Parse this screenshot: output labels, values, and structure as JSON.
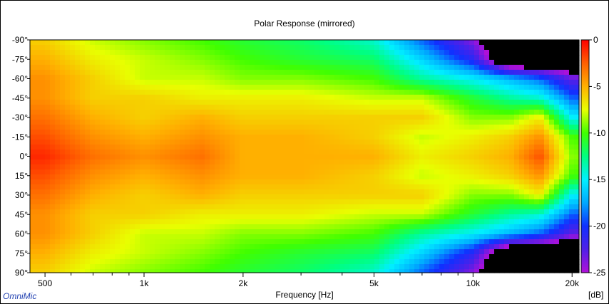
{
  "chart_data": {
    "type": "heatmap",
    "title": "Polar Response (mirrored)",
    "xlabel": "Frequency [Hz]",
    "ylabel": "",
    "colorbar_label": "[dB]",
    "x_scale": "log",
    "xlim": [
      450,
      21000
    ],
    "ylim": [
      -90,
      90
    ],
    "x_tick_labels": [
      {
        "value": 500,
        "label": "500"
      },
      {
        "value": 1000,
        "label": "1k"
      },
      {
        "value": 2000,
        "label": "2k"
      },
      {
        "value": 5000,
        "label": "5k"
      },
      {
        "value": 10000,
        "label": "10k"
      },
      {
        "value": 20000,
        "label": "20k"
      }
    ],
    "x_minor_ticks": [
      600,
      700,
      800,
      900,
      3000,
      4000,
      6000,
      7000,
      8000,
      9000
    ],
    "y_tick_labels": [
      {
        "value": -90,
        "label": "-90°"
      },
      {
        "value": -75,
        "label": "-75°"
      },
      {
        "value": -60,
        "label": "-60°"
      },
      {
        "value": -45,
        "label": "-45°"
      },
      {
        "value": -30,
        "label": "-30°"
      },
      {
        "value": -15,
        "label": "-15°"
      },
      {
        "value": 0,
        "label": "0°"
      },
      {
        "value": 15,
        "label": "15°"
      },
      {
        "value": 30,
        "label": "30°"
      },
      {
        "value": 45,
        "label": "45°"
      },
      {
        "value": 60,
        "label": "60°"
      },
      {
        "value": 75,
        "label": "75°"
      },
      {
        "value": 90,
        "label": "90°"
      }
    ],
    "colorbar": {
      "range": [
        -25,
        0
      ],
      "ticks": [
        {
          "value": 0,
          "label": "0"
        },
        {
          "value": -5,
          "label": "-5"
        },
        {
          "value": -10,
          "label": "-10"
        },
        {
          "value": -15,
          "label": "-15"
        },
        {
          "value": -20,
          "label": "-20"
        },
        {
          "value": -25,
          "label": "-25"
        }
      ],
      "stops": [
        {
          "value": -25,
          "color": "#b010d8"
        },
        {
          "value": -22.5,
          "color": "#5020e8"
        },
        {
          "value": -20,
          "color": "#1030ff"
        },
        {
          "value": -17.5,
          "color": "#00a8ff"
        },
        {
          "value": -15,
          "color": "#00f0ff"
        },
        {
          "value": -12.5,
          "color": "#00ff80"
        },
        {
          "value": -10,
          "color": "#40ff00"
        },
        {
          "value": -7.5,
          "color": "#e8ff00"
        },
        {
          "value": -5,
          "color": "#ffb000"
        },
        {
          "value": -2.5,
          "color": "#ff6000"
        },
        {
          "value": 0,
          "color": "#ff0000"
        }
      ],
      "below_floor_color": "#000000"
    },
    "angles": [
      0,
      15,
      30,
      45,
      60,
      75,
      90
    ],
    "frequencies": [
      500,
      700,
      1000,
      1500,
      2000,
      3000,
      5000,
      7000,
      10000,
      13000,
      16000,
      20000
    ],
    "levels_db": [
      [
        -1,
        -3,
        -4,
        -3,
        -5,
        -5,
        -5,
        -7,
        -6,
        -5,
        -2,
        -9
      ],
      [
        -2,
        -4,
        -5,
        -4,
        -5,
        -5,
        -6,
        -8,
        -7,
        -6,
        -4,
        -10
      ],
      [
        -3,
        -5,
        -6,
        -5,
        -6,
        -6,
        -6,
        -6,
        -9,
        -9,
        -7,
        -15
      ],
      [
        -4,
        -6,
        -6,
        -7,
        -7,
        -7,
        -8,
        -8,
        -11,
        -13,
        -14,
        -19
      ],
      [
        -4,
        -6,
        -8,
        -8,
        -9,
        -9,
        -10,
        -13,
        -15,
        -17,
        -19,
        -23
      ],
      [
        -5,
        -7,
        -8,
        -9,
        -10,
        -11,
        -12,
        -16,
        -21,
        -30,
        -30,
        -30
      ],
      [
        -6,
        -8,
        -9,
        -10,
        -11,
        -12,
        -14,
        -19,
        -24,
        -30,
        -30,
        -30
      ]
    ],
    "grid": false,
    "legend": "colorbar-right",
    "brand": "OmniMic"
  }
}
